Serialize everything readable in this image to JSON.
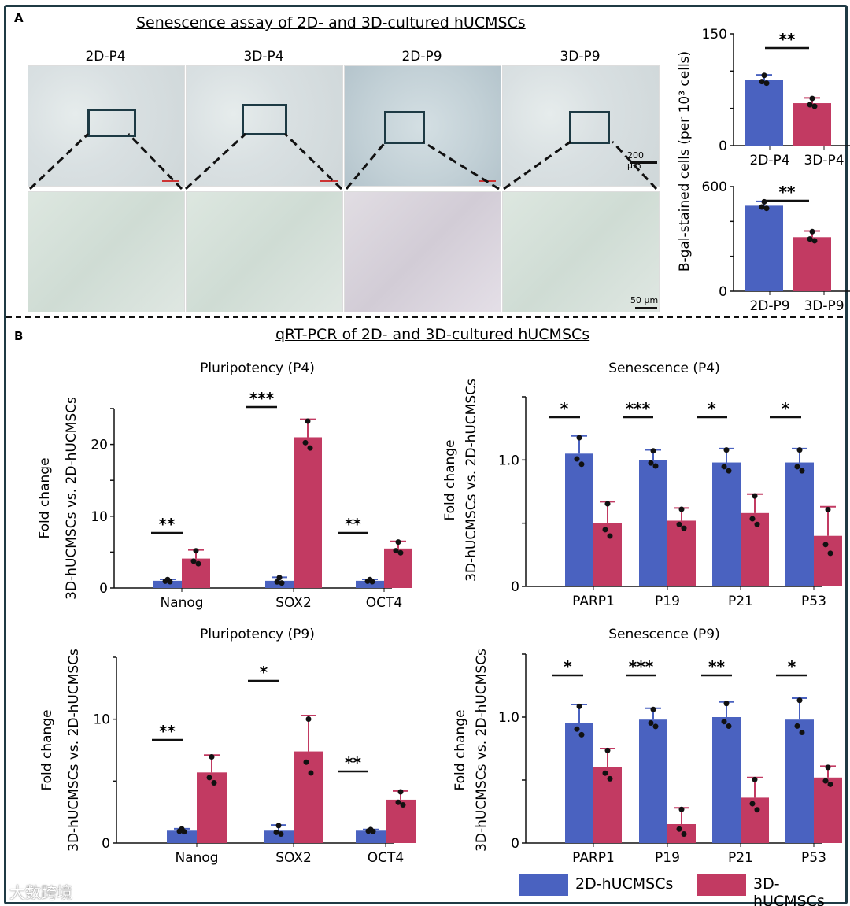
{
  "panel_a": {
    "label": "A",
    "title": "Senescence assay of 2D- and 3D-cultured hUCMSCs",
    "columns": [
      "2D-P4",
      "3D-P4",
      "2D-P9",
      "3D-P9"
    ],
    "scale_bars": [
      "200 µm",
      "50 µm"
    ]
  },
  "panel_b": {
    "label": "B",
    "title": "qRT-PCR of 2D- and 3D-cultured hUCMSCs"
  },
  "legend": [
    {
      "name": "2D-hUCMSCs",
      "color": "#4a62c0"
    },
    {
      "name": "3D-hUCMSCs",
      "color": "#c23a62"
    }
  ],
  "watermark": "大数跨境",
  "chart_data": [
    {
      "type": "bar",
      "title": "",
      "ylabel": "B-gal-stained cells (per 10³ cells)",
      "ylim": [
        0,
        150
      ],
      "yticks": [
        0,
        150
      ],
      "categories": [
        "2D-P4",
        "3D-P4"
      ],
      "series": [
        {
          "name": "value",
          "values": [
            88,
            57
          ]
        }
      ],
      "errors": [
        7,
        7
      ],
      "significance": [
        "**"
      ]
    },
    {
      "type": "bar",
      "title": "",
      "ylabel": "",
      "ylim": [
        0,
        600
      ],
      "yticks": [
        0,
        600
      ],
      "categories": [
        "2D-P9",
        "3D-P9"
      ],
      "series": [
        {
          "name": "value",
          "values": [
            490,
            310
          ]
        }
      ],
      "errors": [
        25,
        35
      ],
      "significance": [
        "**"
      ]
    },
    {
      "type": "bar",
      "title": "Pluripotency (P4)",
      "ylabel": [
        "Fold change",
        "3D-hUCMSCs vs. 2D-hUCMSCs"
      ],
      "ylim": [
        0,
        25
      ],
      "yticks": [
        0,
        10,
        20
      ],
      "categories": [
        "Nanog",
        "SOX2",
        "OCT4"
      ],
      "series": [
        {
          "name": "2D-hUCMSCs",
          "values": [
            1,
            1,
            1
          ]
        },
        {
          "name": "3D-hUCMSCs",
          "values": [
            4.1,
            21,
            5.5
          ]
        }
      ],
      "errors": [
        [
          0.2,
          0.5,
          0.2
        ],
        [
          1.2,
          2.5,
          1.0
        ]
      ],
      "significance": [
        "**",
        "***",
        "**"
      ]
    },
    {
      "type": "bar",
      "title": "Senescence (P4)",
      "ylabel": [
        "Fold change",
        "3D-hUCMSCs vs. 2D-hUCMSCs"
      ],
      "ylim": [
        0,
        1.5
      ],
      "yticks": [
        0,
        1.0
      ],
      "categories": [
        "PARP1",
        "P19",
        "P21",
        "P53"
      ],
      "series": [
        {
          "name": "2D-hUCMSCs",
          "values": [
            1.05,
            1.0,
            0.98,
            0.98
          ]
        },
        {
          "name": "3D-hUCMSCs",
          "values": [
            0.5,
            0.52,
            0.58,
            0.4
          ]
        }
      ],
      "errors": [
        [
          0.14,
          0.08,
          0.11,
          0.11
        ],
        [
          0.17,
          0.1,
          0.15,
          0.23
        ]
      ],
      "significance": [
        "*",
        "***",
        "*",
        "*"
      ]
    },
    {
      "type": "bar",
      "title": "Pluripotency (P9)",
      "ylabel": [
        "Fold change",
        "3D-hUCMSCs vs. 2D-hUCMSCs"
      ],
      "ylim": [
        0,
        15
      ],
      "yticks": [
        0,
        10
      ],
      "categories": [
        "Nanog",
        "SOX2",
        "OCT4"
      ],
      "series": [
        {
          "name": "2D-hUCMSCs",
          "values": [
            1,
            1,
            1
          ]
        },
        {
          "name": "3D-hUCMSCs",
          "values": [
            5.7,
            7.4,
            3.5
          ]
        }
      ],
      "errors": [
        [
          0.15,
          0.45,
          0.1
        ],
        [
          1.4,
          2.9,
          0.7
        ]
      ],
      "significance": [
        "**",
        "*",
        "**"
      ]
    },
    {
      "type": "bar",
      "title": "Senescence (P9)",
      "ylabel": [
        "Fold change",
        "3D-hUCMSCs vs. 2D-hUCMSCs"
      ],
      "ylim": [
        0,
        1.5
      ],
      "yticks": [
        0,
        1.0
      ],
      "categories": [
        "PARP1",
        "P19",
        "P21",
        "P53"
      ],
      "series": [
        {
          "name": "2D-hUCMSCs",
          "values": [
            0.95,
            0.98,
            1.0,
            0.98
          ]
        },
        {
          "name": "3D-hUCMSCs",
          "values": [
            0.6,
            0.15,
            0.36,
            0.52
          ]
        }
      ],
      "errors": [
        [
          0.15,
          0.09,
          0.12,
          0.17
        ],
        [
          0.15,
          0.13,
          0.16,
          0.09
        ]
      ],
      "significance": [
        "*",
        "***",
        "**",
        "*"
      ]
    }
  ]
}
